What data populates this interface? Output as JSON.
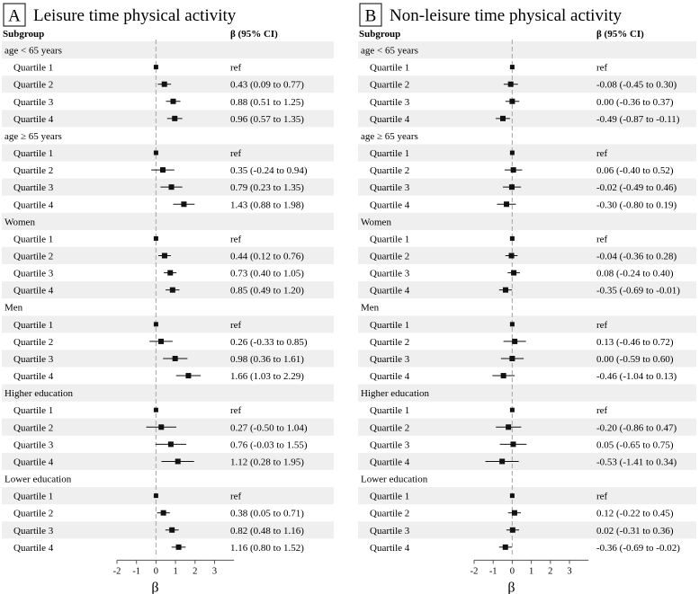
{
  "chart_data": [
    {
      "type": "forest",
      "panel_letter": "A",
      "title": "Leisure time physical activity",
      "col_headers": {
        "subgroup": "Subgroup",
        "estimate": "β (95% CI)"
      },
      "xlabel": "β",
      "xlim": [
        -2,
        4
      ],
      "xticks": [
        -2,
        -1,
        0,
        1,
        2,
        3
      ],
      "reference_line": 0,
      "rows": [
        {
          "type": "group",
          "label": "age < 65 years"
        },
        {
          "type": "item",
          "label": "Quartile 1",
          "text": "ref",
          "est": 0,
          "lo": 0,
          "hi": 0
        },
        {
          "type": "item",
          "label": "Quartile 2",
          "text": "0.43 (0.09 to 0.77)",
          "est": 0.43,
          "lo": 0.09,
          "hi": 0.77
        },
        {
          "type": "item",
          "label": "Quartile 3",
          "text": "0.88 (0.51 to 1.25)",
          "est": 0.88,
          "lo": 0.51,
          "hi": 1.25
        },
        {
          "type": "item",
          "label": "Quartile 4",
          "text": "0.96 (0.57 to 1.35)",
          "est": 0.96,
          "lo": 0.57,
          "hi": 1.35
        },
        {
          "type": "group",
          "label": "age ≥ 65 years"
        },
        {
          "type": "item",
          "label": "Quartile 1",
          "text": "ref",
          "est": 0,
          "lo": 0,
          "hi": 0
        },
        {
          "type": "item",
          "label": "Quartile 2",
          "text": "0.35 (-0.24 to 0.94)",
          "est": 0.35,
          "lo": -0.24,
          "hi": 0.94
        },
        {
          "type": "item",
          "label": "Quartile 3",
          "text": "0.79 (0.23 to 1.35)",
          "est": 0.79,
          "lo": 0.23,
          "hi": 1.35
        },
        {
          "type": "item",
          "label": "Quartile 4",
          "text": "1.43 (0.88 to 1.98)",
          "est": 1.43,
          "lo": 0.88,
          "hi": 1.98
        },
        {
          "type": "group",
          "label": "Women"
        },
        {
          "type": "item",
          "label": "Quartile 1",
          "text": "ref",
          "est": 0,
          "lo": 0,
          "hi": 0
        },
        {
          "type": "item",
          "label": "Quartile 2",
          "text": "0.44 (0.12 to 0.76)",
          "est": 0.44,
          "lo": 0.12,
          "hi": 0.76
        },
        {
          "type": "item",
          "label": "Quartile 3",
          "text": "0.73 (0.40 to 1.05)",
          "est": 0.73,
          "lo": 0.4,
          "hi": 1.05
        },
        {
          "type": "item",
          "label": "Quartile 4",
          "text": "0.85 (0.49 to 1.20)",
          "est": 0.85,
          "lo": 0.49,
          "hi": 1.2
        },
        {
          "type": "group",
          "label": "Men"
        },
        {
          "type": "item",
          "label": "Quartile 1",
          "text": "ref",
          "est": 0,
          "lo": 0,
          "hi": 0
        },
        {
          "type": "item",
          "label": "Quartile 2",
          "text": "0.26 (-0.33 to 0.85)",
          "est": 0.26,
          "lo": -0.33,
          "hi": 0.85
        },
        {
          "type": "item",
          "label": "Quartile 3",
          "text": "0.98 (0.36 to 1.61)",
          "est": 0.98,
          "lo": 0.36,
          "hi": 1.61
        },
        {
          "type": "item",
          "label": "Quartile 4",
          "text": "1.66 (1.03 to 2.29)",
          "est": 1.66,
          "lo": 1.03,
          "hi": 2.29
        },
        {
          "type": "group",
          "label": "Higher education"
        },
        {
          "type": "item",
          "label": "Quartile 1",
          "text": "ref",
          "est": 0,
          "lo": 0,
          "hi": 0
        },
        {
          "type": "item",
          "label": "Quartile 2",
          "text": "0.27 (-0.50 to 1.04)",
          "est": 0.27,
          "lo": -0.5,
          "hi": 1.04
        },
        {
          "type": "item",
          "label": "Quartile 3",
          "text": "0.76 (-0.03 to 1.55)",
          "est": 0.76,
          "lo": -0.03,
          "hi": 1.55
        },
        {
          "type": "item",
          "label": "Quartile 4",
          "text": "1.12 (0.28 to 1.95)",
          "est": 1.12,
          "lo": 0.28,
          "hi": 1.95
        },
        {
          "type": "group",
          "label": "Lower education"
        },
        {
          "type": "item",
          "label": "Quartile 1",
          "text": "ref",
          "est": 0,
          "lo": 0,
          "hi": 0
        },
        {
          "type": "item",
          "label": "Quartile 2",
          "text": "0.38 (0.05 to 0.71)",
          "est": 0.38,
          "lo": 0.05,
          "hi": 0.71
        },
        {
          "type": "item",
          "label": "Quartile 3",
          "text": "0.82 (0.48 to 1.16)",
          "est": 0.82,
          "lo": 0.48,
          "hi": 1.16
        },
        {
          "type": "item",
          "label": "Quartile 4",
          "text": "1.16 (0.80 to 1.52)",
          "est": 1.16,
          "lo": 0.8,
          "hi": 1.52
        }
      ]
    },
    {
      "type": "forest",
      "panel_letter": "B",
      "title": "Non-leisure time physical activity",
      "col_headers": {
        "subgroup": "Subgroup",
        "estimate": "β (95% CI)"
      },
      "xlabel": "β",
      "xlim": [
        -2,
        4
      ],
      "xticks": [
        -2,
        -1,
        0,
        1,
        2,
        3
      ],
      "reference_line": 0,
      "rows": [
        {
          "type": "group",
          "label": "age < 65 years"
        },
        {
          "type": "item",
          "label": "Quartile 1",
          "text": "ref",
          "est": 0,
          "lo": 0,
          "hi": 0
        },
        {
          "type": "item",
          "label": "Quartile 2",
          "text": "-0.08 (-0.45 to 0.30)",
          "est": -0.08,
          "lo": -0.45,
          "hi": 0.3
        },
        {
          "type": "item",
          "label": "Quartile 3",
          "text": "0.00 (-0.36 to 0.37)",
          "est": 0.0,
          "lo": -0.36,
          "hi": 0.37
        },
        {
          "type": "item",
          "label": "Quartile 4",
          "text": "-0.49 (-0.87 to -0.11)",
          "est": -0.49,
          "lo": -0.87,
          "hi": -0.11
        },
        {
          "type": "group",
          "label": "age ≥ 65 years"
        },
        {
          "type": "item",
          "label": "Quartile 1",
          "text": "ref",
          "est": 0,
          "lo": 0,
          "hi": 0
        },
        {
          "type": "item",
          "label": "Quartile 2",
          "text": "0.06 (-0.40 to 0.52)",
          "est": 0.06,
          "lo": -0.4,
          "hi": 0.52
        },
        {
          "type": "item",
          "label": "Quartile 3",
          "text": "-0.02 (-0.49 to 0.46)",
          "est": -0.02,
          "lo": -0.49,
          "hi": 0.46
        },
        {
          "type": "item",
          "label": "Quartile 4",
          "text": "-0.30 (-0.80 to 0.19)",
          "est": -0.3,
          "lo": -0.8,
          "hi": 0.19
        },
        {
          "type": "group",
          "label": "Women"
        },
        {
          "type": "item",
          "label": "Quartile 1",
          "text": "ref",
          "est": 0,
          "lo": 0,
          "hi": 0
        },
        {
          "type": "item",
          "label": "Quartile 2",
          "text": "-0.04 (-0.36 to 0.28)",
          "est": -0.04,
          "lo": -0.36,
          "hi": 0.28
        },
        {
          "type": "item",
          "label": "Quartile 3",
          "text": "0.08 (-0.24 to 0.40)",
          "est": 0.08,
          "lo": -0.24,
          "hi": 0.4
        },
        {
          "type": "item",
          "label": "Quartile 4",
          "text": "-0.35 (-0.69 to -0.01)",
          "est": -0.35,
          "lo": -0.69,
          "hi": -0.01
        },
        {
          "type": "group",
          "label": "Men"
        },
        {
          "type": "item",
          "label": "Quartile 1",
          "text": "ref",
          "est": 0,
          "lo": 0,
          "hi": 0
        },
        {
          "type": "item",
          "label": "Quartile 2",
          "text": "0.13 (-0.46 to 0.72)",
          "est": 0.13,
          "lo": -0.46,
          "hi": 0.72
        },
        {
          "type": "item",
          "label": "Quartile 3",
          "text": "0.00 (-0.59 to 0.60)",
          "est": 0.0,
          "lo": -0.59,
          "hi": 0.6
        },
        {
          "type": "item",
          "label": "Quartile 4",
          "text": "-0.46 (-1.04 to 0.13)",
          "est": -0.46,
          "lo": -1.04,
          "hi": 0.13
        },
        {
          "type": "group",
          "label": "Higher education"
        },
        {
          "type": "item",
          "label": "Quartile 1",
          "text": "ref",
          "est": 0,
          "lo": 0,
          "hi": 0
        },
        {
          "type": "item",
          "label": "Quartile 2",
          "text": "-0.20 (-0.86 to 0.47)",
          "est": -0.2,
          "lo": -0.86,
          "hi": 0.47
        },
        {
          "type": "item",
          "label": "Quartile 3",
          "text": "0.05 (-0.65 to 0.75)",
          "est": 0.05,
          "lo": -0.65,
          "hi": 0.75
        },
        {
          "type": "item",
          "label": "Quartile 4",
          "text": "-0.53 (-1.41 to 0.34)",
          "est": -0.53,
          "lo": -1.41,
          "hi": 0.34
        },
        {
          "type": "group",
          "label": "Lower education"
        },
        {
          "type": "item",
          "label": "Quartile 1",
          "text": "ref",
          "est": 0,
          "lo": 0,
          "hi": 0
        },
        {
          "type": "item",
          "label": "Quartile 2",
          "text": "0.12 (-0.22 to 0.45)",
          "est": 0.12,
          "lo": -0.22,
          "hi": 0.45
        },
        {
          "type": "item",
          "label": "Quartile 3",
          "text": "0.02 (-0.31 to 0.36)",
          "est": 0.02,
          "lo": -0.31,
          "hi": 0.36
        },
        {
          "type": "item",
          "label": "Quartile 4",
          "text": "-0.36 (-0.69 to -0.02)",
          "est": -0.36,
          "lo": -0.69,
          "hi": -0.02
        }
      ]
    }
  ],
  "colors": {
    "row_shade": "#efefef",
    "ref_line": "#b0b0b0",
    "marker": "#111111",
    "ci_line": "#111111",
    "axis": "#555555",
    "text": "#000000"
  }
}
